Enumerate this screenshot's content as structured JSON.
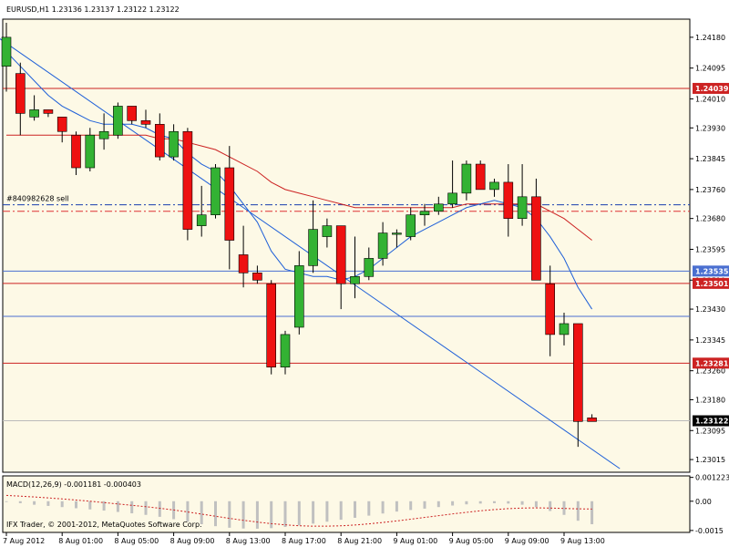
{
  "chart_data": {
    "type": "candlestick",
    "symbol_header": "EURUSD,H1  1.23136 1.23137 1.23122 1.23122",
    "colors": {
      "background": "#fdf9e6",
      "bull": "#33b233",
      "bear": "#ee1111",
      "ma_fast": "#1e5fd8",
      "ma_slow": "#cc2222",
      "grid": "#000000"
    },
    "y_ticks": [
      "1.24180",
      "1.24095",
      "1.24010",
      "1.23930",
      "1.23845",
      "1.23760",
      "1.23680",
      "1.23595",
      "1.23510",
      "1.23430",
      "1.23345",
      "1.23260",
      "1.23180",
      "1.23095",
      "1.23015"
    ],
    "ylim": [
      1.2298,
      1.2423
    ],
    "x_labels": [
      "7 Aug 2012",
      "8 Aug 01:00",
      "8 Aug 05:00",
      "8 Aug 09:00",
      "8 Aug 13:00",
      "8 Aug 17:00",
      "8 Aug 21:00",
      "9 Aug 01:00",
      "9 Aug 05:00",
      "9 Aug 09:00",
      "9 Aug 13:00"
    ],
    "x_label_bars": [
      0,
      4,
      8,
      12,
      16,
      20,
      24,
      28,
      32,
      36,
      40
    ],
    "candles": [
      {
        "o": 1.241,
        "h": 1.2422,
        "l": 1.2403,
        "c": 1.2418
      },
      {
        "o": 1.2408,
        "h": 1.2411,
        "l": 1.2391,
        "c": 1.2397
      },
      {
        "o": 1.2396,
        "h": 1.2402,
        "l": 1.2395,
        "c": 1.2398
      },
      {
        "o": 1.2398,
        "h": 1.2398,
        "l": 1.2396,
        "c": 1.2397
      },
      {
        "o": 1.2396,
        "h": 1.2396,
        "l": 1.2389,
        "c": 1.2392
      },
      {
        "o": 1.2391,
        "h": 1.2392,
        "l": 1.238,
        "c": 1.2382
      },
      {
        "o": 1.2382,
        "h": 1.2393,
        "l": 1.2381,
        "c": 1.2391
      },
      {
        "o": 1.239,
        "h": 1.2397,
        "l": 1.2387,
        "c": 1.2392
      },
      {
        "o": 1.2391,
        "h": 1.24,
        "l": 1.239,
        "c": 1.2399
      },
      {
        "o": 1.2399,
        "h": 1.2399,
        "l": 1.2394,
        "c": 1.2395
      },
      {
        "o": 1.2395,
        "h": 1.2398,
        "l": 1.2393,
        "c": 1.2394
      },
      {
        "o": 1.2394,
        "h": 1.2397,
        "l": 1.2384,
        "c": 1.2385
      },
      {
        "o": 1.2385,
        "h": 1.2394,
        "l": 1.2384,
        "c": 1.2392
      },
      {
        "o": 1.2392,
        "h": 1.2393,
        "l": 1.2362,
        "c": 1.2365
      },
      {
        "o": 1.2366,
        "h": 1.2377,
        "l": 1.2363,
        "c": 1.2369
      },
      {
        "o": 1.2369,
        "h": 1.2383,
        "l": 1.2368,
        "c": 1.2382
      },
      {
        "o": 1.2382,
        "h": 1.2388,
        "l": 1.2354,
        "c": 1.2362
      },
      {
        "o": 1.2358,
        "h": 1.2366,
        "l": 1.2349,
        "c": 1.2353
      },
      {
        "o": 1.2353,
        "h": 1.2355,
        "l": 1.235,
        "c": 1.2351
      },
      {
        "o": 1.235,
        "h": 1.2351,
        "l": 1.2325,
        "c": 1.2327
      },
      {
        "o": 1.2327,
        "h": 1.2337,
        "l": 1.2325,
        "c": 1.2336
      },
      {
        "o": 1.2338,
        "h": 1.2359,
        "l": 1.2336,
        "c": 1.2355
      },
      {
        "o": 1.2355,
        "h": 1.2373,
        "l": 1.2353,
        "c": 1.2365
      },
      {
        "o": 1.2363,
        "h": 1.2368,
        "l": 1.236,
        "c": 1.2366
      },
      {
        "o": 1.2366,
        "h": 1.2366,
        "l": 1.2343,
        "c": 1.235
      },
      {
        "o": 1.235,
        "h": 1.2363,
        "l": 1.2346,
        "c": 1.2352
      },
      {
        "o": 1.2352,
        "h": 1.236,
        "l": 1.2351,
        "c": 1.2357
      },
      {
        "o": 1.2357,
        "h": 1.2367,
        "l": 1.2355,
        "c": 1.2364
      },
      {
        "o": 1.2364,
        "h": 1.2365,
        "l": 1.236,
        "c": 1.2364
      },
      {
        "o": 1.2363,
        "h": 1.2371,
        "l": 1.2362,
        "c": 1.2369
      },
      {
        "o": 1.2369,
        "h": 1.2372,
        "l": 1.2366,
        "c": 1.237
      },
      {
        "o": 1.237,
        "h": 1.2374,
        "l": 1.2369,
        "c": 1.2372
      },
      {
        "o": 1.2372,
        "h": 1.2384,
        "l": 1.2371,
        "c": 1.2375
      },
      {
        "o": 1.2375,
        "h": 1.2384,
        "l": 1.2373,
        "c": 1.2383
      },
      {
        "o": 1.2383,
        "h": 1.2384,
        "l": 1.2376,
        "c": 1.2376
      },
      {
        "o": 1.2376,
        "h": 1.2379,
        "l": 1.2374,
        "c": 1.2378
      },
      {
        "o": 1.2378,
        "h": 1.2383,
        "l": 1.2363,
        "c": 1.2368
      },
      {
        "o": 1.2368,
        "h": 1.2383,
        "l": 1.2366,
        "c": 1.2374
      },
      {
        "o": 1.2374,
        "h": 1.2379,
        "l": 1.2352,
        "c": 1.2351
      },
      {
        "o": 1.235,
        "h": 1.2355,
        "l": 1.233,
        "c": 1.2336
      },
      {
        "o": 1.2336,
        "h": 1.2342,
        "l": 1.2333,
        "c": 1.2339
      },
      {
        "o": 1.2339,
        "h": 1.2339,
        "l": 1.2305,
        "c": 1.2312
      },
      {
        "o": 1.2313,
        "h": 1.2314,
        "l": 1.2312,
        "c": 1.2312
      }
    ],
    "ma_fast": [
      1.2414,
      1.241,
      1.2406,
      1.2402,
      1.2399,
      1.2397,
      1.2395,
      1.2394,
      1.2394,
      1.2394,
      1.2393,
      1.2391,
      1.239,
      1.2386,
      1.2383,
      1.2381,
      1.2377,
      1.2372,
      1.2367,
      1.2359,
      1.2354,
      1.2353,
      1.2352,
      1.2352,
      1.2351,
      1.2352,
      1.2354,
      1.2357,
      1.236,
      1.2363,
      1.2365,
      1.2367,
      1.2369,
      1.2371,
      1.2372,
      1.2373,
      1.2372,
      1.2371,
      1.2368,
      1.2363,
      1.2357,
      1.2349,
      1.2343
    ],
    "ma_slow": [
      1.2391,
      1.2391,
      1.2391,
      1.2391,
      1.2391,
      1.2391,
      1.2391,
      1.2391,
      1.2391,
      1.2391,
      1.2391,
      1.239,
      1.239,
      1.2389,
      1.2388,
      1.2387,
      1.2385,
      1.2383,
      1.2381,
      1.2378,
      1.2376,
      1.2375,
      1.2374,
      1.2373,
      1.2372,
      1.2371,
      1.2371,
      1.2371,
      1.2371,
      1.2371,
      1.2371,
      1.2371,
      1.2371,
      1.2372,
      1.2372,
      1.2372,
      1.2372,
      1.2372,
      1.2372,
      1.237,
      1.2368,
      1.2365,
      1.2362
    ],
    "trendline": {
      "from": [
        -1,
        1.2419
      ],
      "to": [
        44,
        1.2299
      ]
    },
    "hlines": [
      {
        "price": 1.24039,
        "color": "#cc2222",
        "style": "solid",
        "label": "1.24039"
      },
      {
        "price": 1.23718,
        "color": "#1a3fb0",
        "style": "dashdot",
        "text": "#840982628 sell"
      },
      {
        "price": 1.237,
        "color": "#dd3333",
        "style": "dashdot"
      },
      {
        "price": 1.23535,
        "color": "#4a6fd0",
        "style": "solid",
        "label": "1.23535"
      },
      {
        "price": 1.23501,
        "color": "#cc2222",
        "style": "solid",
        "label": "1.23501"
      },
      {
        "price": 1.2341,
        "color": "#4a6fd0",
        "style": "solid"
      },
      {
        "price": 1.23281,
        "color": "#cc2222",
        "style": "solid",
        "label": "1.23281"
      },
      {
        "price": 1.23122,
        "color": "#bbbbbb",
        "style": "solid",
        "label": "1.23122",
        "label_style": "dark"
      }
    ],
    "macd": {
      "label": "MACD(12,26,9) -0.001181 -0.000403",
      "y_ticks": [
        "0.001223",
        "0.00",
        "-0.0015"
      ],
      "ylim": [
        -0.0016,
        0.0013
      ],
      "hist": [
        -4e-05,
        -0.0001,
        -0.00018,
        -0.00024,
        -0.0003,
        -0.00036,
        -0.00042,
        -0.00048,
        -0.00055,
        -0.00062,
        -0.0007,
        -0.0008,
        -0.00092,
        -0.00105,
        -0.00118,
        -0.00128,
        -0.00136,
        -0.0014,
        -0.00141,
        -0.00138,
        -0.00132,
        -0.00124,
        -0.00115,
        -0.00105,
        -0.00095,
        -0.00085,
        -0.00074,
        -0.00063,
        -0.00053,
        -0.00045,
        -0.00038,
        -0.0003,
        -0.00022,
        -0.00016,
        -0.00012,
        -0.0001,
        -0.00012,
        -0.00018,
        -0.0003,
        -0.0005,
        -0.0007,
        -0.001,
        -0.00118
      ],
      "signal": [
        0.0003,
        0.00026,
        0.00022,
        0.00017,
        0.00012,
        6e-05,
        0.0,
        -7e-05,
        -0.00014,
        -0.00021,
        -0.00028,
        -0.00036,
        -0.00045,
        -0.00055,
        -0.00066,
        -0.00077,
        -0.00088,
        -0.00098,
        -0.00107,
        -0.00115,
        -0.00121,
        -0.00126,
        -0.00128,
        -0.00128,
        -0.00126,
        -0.00122,
        -0.00116,
        -0.00109,
        -0.00101,
        -0.00092,
        -0.00083,
        -0.00074,
        -0.00065,
        -0.00057,
        -0.00049,
        -0.00043,
        -0.00038,
        -0.00035,
        -0.00034,
        -0.00035,
        -0.00037,
        -0.00039,
        -0.0004
      ]
    },
    "copyright": "IFX Trader, © 2001-2012, MetaQuotes Software Corp."
  }
}
